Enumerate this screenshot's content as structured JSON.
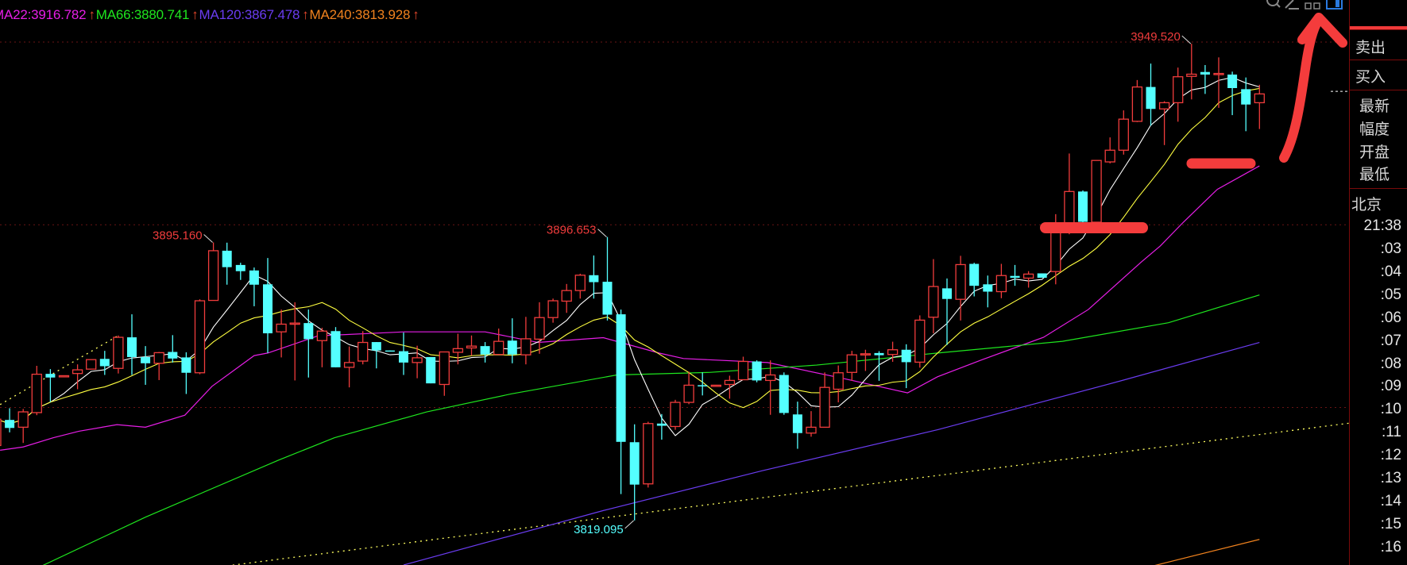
{
  "legend": [
    {
      "label": "MA22:3916.782",
      "color": "#e61ee6",
      "trend": "↑"
    },
    {
      "label": "MA66:3880.741",
      "color": "#1ee61e",
      "trend": "↑"
    },
    {
      "label": "MA120:3867.478",
      "color": "#6a3cf0",
      "trend": "↑"
    },
    {
      "label": "MA240:3813.928",
      "color": "#f0821e",
      "trend": "↑"
    }
  ],
  "toolbar_icons": [
    "zoom-icon",
    "draw-pencil-icon",
    "layout-squares-icon",
    "window-toggle-icon"
  ],
  "panel": {
    "sell": "卖出",
    "buy": "买入",
    "fields": [
      "最新",
      "幅度",
      "开盘",
      "最低"
    ],
    "timezone": "北京",
    "current_time": "21:38",
    "time_ticks": [
      ":03",
      ":04",
      ":05",
      ":06",
      ":07",
      ":08",
      ":09",
      ":10",
      ":11",
      ":12",
      ":13",
      ":14",
      ":15",
      ":16"
    ]
  },
  "colors": {
    "up": "#f03c3c",
    "down": "#54ffff",
    "ma_short": "#ffffff",
    "ma_mid": "#ffff40",
    "grid": "#6a1414",
    "trendline": "#ffff60",
    "annotation": "#f43c3c"
  },
  "chart_data": {
    "type": "candlestick",
    "ylim": [
      3806.9,
      3961.5
    ],
    "grid_levels": [
      3850,
      3900,
      3950
    ],
    "ohlc": [
      [
        3839.6,
        3847.0,
        3837.0,
        3846.8
      ],
      [
        3846.6,
        3849.8,
        3843.2,
        3844.4
      ],
      [
        3844.6,
        3849.6,
        3840.3,
        3848.8
      ],
      [
        3848.6,
        3861.4,
        3847.9,
        3859.1
      ],
      [
        3859.2,
        3860.5,
        3851.5,
        3858.2
      ],
      [
        3858.7,
        3858.8,
        3858.6,
        3858.7
      ],
      [
        3859.3,
        3861.8,
        3855.0,
        3860.3
      ],
      [
        3860.5,
        3863.1,
        3860.5,
        3863.1
      ],
      [
        3863.3,
        3865.5,
        3858.9,
        3861.3
      ],
      [
        3860.7,
        3869.7,
        3859.3,
        3869.2
      ],
      [
        3869.2,
        3875.5,
        3858.9,
        3863.8
      ],
      [
        3863.8,
        3866.8,
        3856.2,
        3862.1
      ],
      [
        3862.1,
        3865.2,
        3857.5,
        3865.0
      ],
      [
        3865.2,
        3869.8,
        3862.3,
        3863.4
      ],
      [
        3863.7,
        3865.1,
        3853.7,
        3859.5
      ],
      [
        3859.5,
        3879.6,
        3859.1,
        3879.2
      ],
      [
        3879.3,
        3895.16,
        3879.3,
        3892.9
      ],
      [
        3892.9,
        3895.1,
        3883.6,
        3888.4
      ],
      [
        3889.0,
        3889.6,
        3884.9,
        3887.3
      ],
      [
        3887.5,
        3888.3,
        3877.7,
        3883.6
      ],
      [
        3883.7,
        3890.9,
        3864.9,
        3870.3
      ],
      [
        3870.7,
        3876.8,
        3863.7,
        3872.8
      ],
      [
        3873.0,
        3878.8,
        3857.4,
        3873.1
      ],
      [
        3873.1,
        3876.8,
        3858.2,
        3868.7
      ],
      [
        3868.3,
        3871.8,
        3861.0,
        3870.9
      ],
      [
        3870.9,
        3872.0,
        3861.0,
        3861.0
      ],
      [
        3861.0,
        3866.7,
        3855.5,
        3862.3
      ],
      [
        3862.7,
        3870.9,
        3861.8,
        3867.8
      ],
      [
        3867.9,
        3867.9,
        3860.7,
        3865.6
      ],
      [
        3865.6,
        3865.6,
        3865.3,
        3865.4
      ],
      [
        3865.4,
        3870.5,
        3858.9,
        3862.3
      ],
      [
        3862.3,
        3866.9,
        3858.0,
        3863.6
      ],
      [
        3863.8,
        3863.8,
        3856.6,
        3856.6
      ],
      [
        3856.3,
        3865.2,
        3853.2,
        3865.2
      ],
      [
        3865.1,
        3870.2,
        3861.8,
        3866.1
      ],
      [
        3866.3,
        3869.7,
        3864.2,
        3866.8
      ],
      [
        3866.8,
        3867.9,
        3862.3,
        3864.5
      ],
      [
        3864.5,
        3871.6,
        3864.5,
        3868.1
      ],
      [
        3868.3,
        3874.4,
        3862.1,
        3864.5
      ],
      [
        3864.4,
        3874.8,
        3861.8,
        3868.8
      ],
      [
        3868.7,
        3878.8,
        3864.7,
        3874.6
      ],
      [
        3874.6,
        3879.8,
        3873.2,
        3879.2
      ],
      [
        3879.1,
        3883.8,
        3875.9,
        3882.0
      ],
      [
        3882.0,
        3886.6,
        3879.8,
        3886.2
      ],
      [
        3886.2,
        3891.6,
        3879.8,
        3884.3
      ],
      [
        3884.4,
        3896.653,
        3873.8,
        3875.4
      ],
      [
        3875.5,
        3876.8,
        3826.3,
        3840.6
      ],
      [
        3840.5,
        3845.4,
        3819.095,
        3828.9
      ],
      [
        3829.1,
        3846.1,
        3828.1,
        3845.6
      ],
      [
        3845.6,
        3848.2,
        3841.2,
        3845.0
      ],
      [
        3844.8,
        3852.1,
        3843.9,
        3851.4
      ],
      [
        3851.4,
        3859.8,
        3850.9,
        3856.1
      ],
      [
        3856.1,
        3859.6,
        3853.3,
        3856.0
      ],
      [
        3855.8,
        3856.1,
        3855.8,
        3856.1
      ],
      [
        3856.3,
        3858.7,
        3852.4,
        3857.4
      ],
      [
        3857.6,
        3863.9,
        3857.6,
        3862.6
      ],
      [
        3862.6,
        3862.9,
        3856.9,
        3857.4
      ],
      [
        3857.4,
        3862.9,
        3848.0,
        3858.9
      ],
      [
        3858.9,
        3859.6,
        3848.0,
        3848.5
      ],
      [
        3848.1,
        3851.6,
        3838.7,
        3843.0
      ],
      [
        3843.0,
        3849.0,
        3842.0,
        3844.6
      ],
      [
        3844.6,
        3859.6,
        3844.6,
        3855.5
      ],
      [
        3855.0,
        3861.5,
        3851.4,
        3859.5
      ],
      [
        3859.6,
        3865.5,
        3857.3,
        3864.4
      ],
      [
        3864.5,
        3865.8,
        3860.0,
        3864.7
      ],
      [
        3864.9,
        3865.4,
        3857.3,
        3864.3
      ],
      [
        3864.5,
        3868.0,
        3862.5,
        3865.8
      ],
      [
        3865.8,
        3867.3,
        3855.3,
        3862.4
      ],
      [
        3862.4,
        3875.2,
        3860.9,
        3873.9
      ],
      [
        3874.7,
        3890.6,
        3870.3,
        3883.1
      ],
      [
        3882.6,
        3885.3,
        3867.1,
        3879.7
      ],
      [
        3879.6,
        3891.5,
        3873.8,
        3889.1
      ],
      [
        3889.3,
        3889.6,
        3880.4,
        3883.3
      ],
      [
        3883.7,
        3886.1,
        3877.4,
        3881.7
      ],
      [
        3881.7,
        3889.3,
        3879.9,
        3886.1
      ],
      [
        3886.0,
        3889.0,
        3883.3,
        3885.5
      ],
      [
        3885.4,
        3887.3,
        3882.8,
        3886.5
      ],
      [
        3886.7,
        3886.7,
        3885.5,
        3885.5
      ],
      [
        3887.2,
        3902.9,
        3883.7,
        3900.0
      ],
      [
        3900.0,
        3919.5,
        3897.4,
        3909.1
      ],
      [
        3909.1,
        3909.4,
        3899.0,
        3900.8
      ],
      [
        3900.7,
        3917.7,
        3900.7,
        3917.6
      ],
      [
        3917.2,
        3923.9,
        3916.8,
        3920.4
      ],
      [
        3920.4,
        3931.3,
        3919.2,
        3928.9
      ],
      [
        3928.3,
        3939.6,
        3928.1,
        3937.7
      ],
      [
        3937.7,
        3944.1,
        3927.1,
        3931.7
      ],
      [
        3931.7,
        3933.8,
        3921.8,
        3933.4
      ],
      [
        3933.4,
        3943.0,
        3928.2,
        3940.5
      ],
      [
        3940.6,
        3949.52,
        3934.3,
        3941.2
      ],
      [
        3941.8,
        3943.7,
        3935.8,
        3941.1
      ],
      [
        3941.3,
        3945.8,
        3932.0,
        3941.4
      ],
      [
        3941.1,
        3941.9,
        3930.0,
        3937.4
      ],
      [
        3937.1,
        3940.3,
        3925.6,
        3932.9
      ],
      [
        3933.4,
        3938.3,
        3926.2,
        3935.8
      ]
    ],
    "moving_averages": [
      {
        "name": "MA22",
        "color": "#e61ee6",
        "points": [
          [
            0.3,
            3838.3
          ],
          [
            2,
            3839.2
          ],
          [
            4.2,
            3841.7
          ],
          [
            6.1,
            3843.5
          ],
          [
            8.9,
            3845.3
          ],
          [
            11,
            3844.6
          ],
          [
            13.9,
            3847.9
          ],
          [
            15.9,
            3855.8
          ],
          [
            19,
            3864.2
          ],
          [
            20,
            3864.9
          ],
          [
            23.7,
            3869.6
          ],
          [
            24.3,
            3869.7
          ],
          [
            30.1,
            3870.7
          ],
          [
            36,
            3870.7
          ],
          [
            39.9,
            3867.8
          ],
          [
            44.7,
            3869.1
          ],
          [
            48.8,
            3864.9
          ],
          [
            50.6,
            3863.4
          ],
          [
            56.8,
            3862.3
          ],
          [
            62.3,
            3858.0
          ],
          [
            67.1,
            3854.0
          ],
          [
            69.3,
            3858.4
          ],
          [
            72.6,
            3863.1
          ],
          [
            77.1,
            3869.2
          ],
          [
            80.4,
            3876.8
          ],
          [
            84.3,
            3889.8
          ],
          [
            85.7,
            3894.2
          ],
          [
            87.4,
            3900.7
          ],
          [
            89.9,
            3909.7
          ],
          [
            93,
            3916.1
          ]
        ]
      },
      {
        "name": "MA66",
        "color": "#1ee61e",
        "points": [
          [
            3,
            3806
          ],
          [
            11,
            3820
          ],
          [
            20.8,
            3835.6
          ],
          [
            24.9,
            3841.7
          ],
          [
            31.7,
            3848.8
          ],
          [
            37.9,
            3853.7
          ],
          [
            45.7,
            3858.9
          ],
          [
            52.5,
            3859.6
          ],
          [
            60.4,
            3861.6
          ],
          [
            69.3,
            3864.9
          ],
          [
            78.5,
            3868.1
          ],
          [
            86.3,
            3873.2
          ],
          [
            93,
            3880.8
          ]
        ]
      },
      {
        "name": "MA120",
        "color": "#6a3cf0",
        "points": [
          [
            30,
            3806.9
          ],
          [
            44.7,
            3821.8
          ],
          [
            56.4,
            3832.7
          ],
          [
            69.3,
            3843.9
          ],
          [
            82.8,
            3857.3
          ],
          [
            93,
            3867.8
          ]
        ]
      },
      {
        "name": "MA240",
        "color": "#f0821e",
        "points": [
          [
            85,
            3806.5
          ],
          [
            93,
            3813.9
          ]
        ]
      }
    ],
    "trendlines": [
      [
        [
          0.3,
          3850.8
        ],
        [
          9,
          3869.7
        ]
      ],
      [
        [
          16.2,
          3806.3
        ],
        [
          99.8,
          3845.8
        ]
      ]
    ],
    "annotations": [
      {
        "label": "3895.160",
        "candle": 16,
        "at": "high",
        "color": "#f03c3c"
      },
      {
        "label": "3896.653",
        "candle": 45,
        "at": "high",
        "color": "#f03c3c"
      },
      {
        "label": "3949.520",
        "candle": 88,
        "at": "high",
        "color": "#f03c3c"
      },
      {
        "label": "3819.095",
        "candle": 47,
        "at": "low",
        "color": "#54ffff"
      }
    ],
    "last_price": 3936.5
  }
}
